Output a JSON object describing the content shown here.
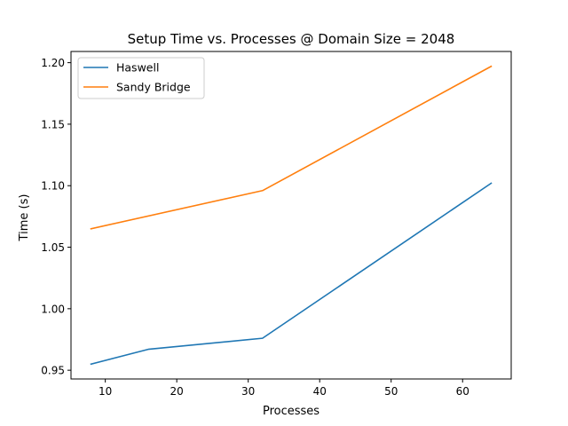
{
  "chart_data": {
    "type": "line",
    "title": "Setup Time vs. Processes @ Domain Size = 2048",
    "xlabel": "Processes",
    "ylabel": "Time (s)",
    "xlim": [
      5.2,
      66.8
    ],
    "ylim": [
      0.9429,
      1.2091
    ],
    "x_ticks": [
      10,
      20,
      30,
      40,
      50,
      60
    ],
    "y_ticks": [
      0.95,
      1.0,
      1.05,
      1.1,
      1.15,
      1.2
    ],
    "y_tick_labels": [
      "0.95",
      "1.00",
      "1.05",
      "1.10",
      "1.15",
      "1.20"
    ],
    "grid": false,
    "legend_position": "top-left",
    "series": [
      {
        "name": "Haswell",
        "color": "#1f77b4",
        "x": [
          8,
          16,
          32,
          64
        ],
        "y": [
          0.955,
          0.967,
          0.976,
          1.102
        ]
      },
      {
        "name": "Sandy Bridge",
        "color": "#ff7f0e",
        "x": [
          8,
          32,
          64
        ],
        "y": [
          1.065,
          1.096,
          1.197
        ]
      }
    ]
  }
}
